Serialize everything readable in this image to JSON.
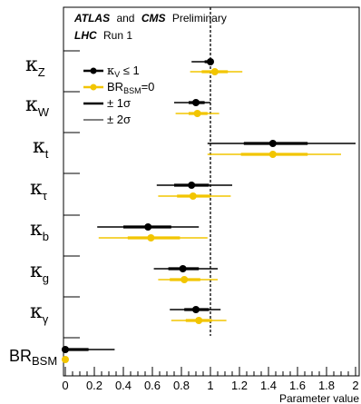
{
  "header": {
    "line1_atlas": "ATLAS",
    "line1_and": "and",
    "line1_cms": "CMS",
    "line1_prelim": "Preliminary",
    "line2_lhc": "LHC",
    "line2_run": "Run 1"
  },
  "legend": {
    "s1_sym": "κ",
    "s1_sub": "V",
    "s1_rest": " ≤ 1",
    "s2_main": "BR",
    "s2_sub": "BSM",
    "s2_rest": "=0",
    "e1": "± 1σ",
    "e2": "± 2σ"
  },
  "param_labels": [
    {
      "sym": "κ",
      "sub": "Z"
    },
    {
      "sym": "κ",
      "sub": "W"
    },
    {
      "sym": "κ",
      "sub": "t"
    },
    {
      "sym": "κ",
      "sub": "τ"
    },
    {
      "sym": "κ",
      "sub": "b"
    },
    {
      "sym": "κ",
      "sub": "g"
    },
    {
      "sym": "κ",
      "sub": "γ"
    },
    {
      "sym": "BR",
      "sub": "BSM"
    }
  ],
  "chart_data": {
    "type": "scatter",
    "xlabel": "Parameter value",
    "xlim": [
      0,
      2
    ],
    "x_ticks": [
      "0",
      "0.2",
      "0.4",
      "0.6",
      "0.8",
      "1",
      "1.2",
      "1.4",
      "1.6",
      "1.8",
      "2"
    ],
    "reference_line_x": 1,
    "colors": {
      "kv_le_1": "#000000",
      "br_bsm_0": "#f2c500"
    },
    "parameters": [
      "κZ",
      "κW",
      "κt",
      "κτ",
      "κb",
      "κg",
      "κγ",
      "BRBSM"
    ],
    "series": [
      {
        "name": "κV ≤ 1",
        "points": [
          {
            "param": "κZ",
            "value": 1.0,
            "err1": [
              0.96,
              1.0
            ],
            "err2": [
              0.87,
              1.0
            ]
          },
          {
            "param": "κW",
            "value": 0.9,
            "err1": [
              0.85,
              0.96
            ],
            "err2": [
              0.75,
              1.0
            ]
          },
          {
            "param": "κt",
            "value": 1.43,
            "err1": [
              1.23,
              1.67
            ],
            "err2": [
              0.98,
              2.0
            ]
          },
          {
            "param": "κτ",
            "value": 0.87,
            "err1": [
              0.75,
              0.99
            ],
            "err2": [
              0.63,
              1.15
            ]
          },
          {
            "param": "κb",
            "value": 0.57,
            "err1": [
              0.4,
              0.73
            ],
            "err2": [
              0.22,
              0.92
            ]
          },
          {
            "param": "κg",
            "value": 0.81,
            "err1": [
              0.71,
              0.92
            ],
            "err2": [
              0.61,
              1.05
            ]
          },
          {
            "param": "κγ",
            "value": 0.9,
            "err1": [
              0.82,
              0.99
            ],
            "err2": [
              0.72,
              1.07
            ]
          },
          {
            "param": "BRBSM",
            "value": 0.0,
            "err1": [
              0.0,
              0.16
            ],
            "err2": [
              0.0,
              0.34
            ]
          }
        ]
      },
      {
        "name": "BRBSM=0",
        "points": [
          {
            "param": "κZ",
            "value": 1.03,
            "err1": [
              0.94,
              1.12
            ],
            "err2": [
              0.86,
              1.22
            ]
          },
          {
            "param": "κW",
            "value": 0.91,
            "err1": [
              0.85,
              0.98
            ],
            "err2": [
              0.76,
              1.06
            ]
          },
          {
            "param": "κt",
            "value": 1.43,
            "err1": [
              1.21,
              1.67
            ],
            "err2": [
              0.98,
              1.9
            ]
          },
          {
            "param": "κτ",
            "value": 0.88,
            "err1": [
              0.77,
              1.0
            ],
            "err2": [
              0.64,
              1.14
            ]
          },
          {
            "param": "κb",
            "value": 0.59,
            "err1": [
              0.43,
              0.79
            ],
            "err2": [
              0.23,
              0.98
            ]
          },
          {
            "param": "κg",
            "value": 0.82,
            "err1": [
              0.72,
              0.93
            ],
            "err2": [
              0.64,
              1.05
            ]
          },
          {
            "param": "κγ",
            "value": 0.92,
            "err1": [
              0.83,
              1.01
            ],
            "err2": [
              0.73,
              1.11
            ]
          },
          {
            "param": "BRBSM",
            "value": 0.0,
            "err1": [
              0.0,
              0.0
            ],
            "err2": [
              0.0,
              0.0
            ]
          }
        ]
      }
    ]
  }
}
